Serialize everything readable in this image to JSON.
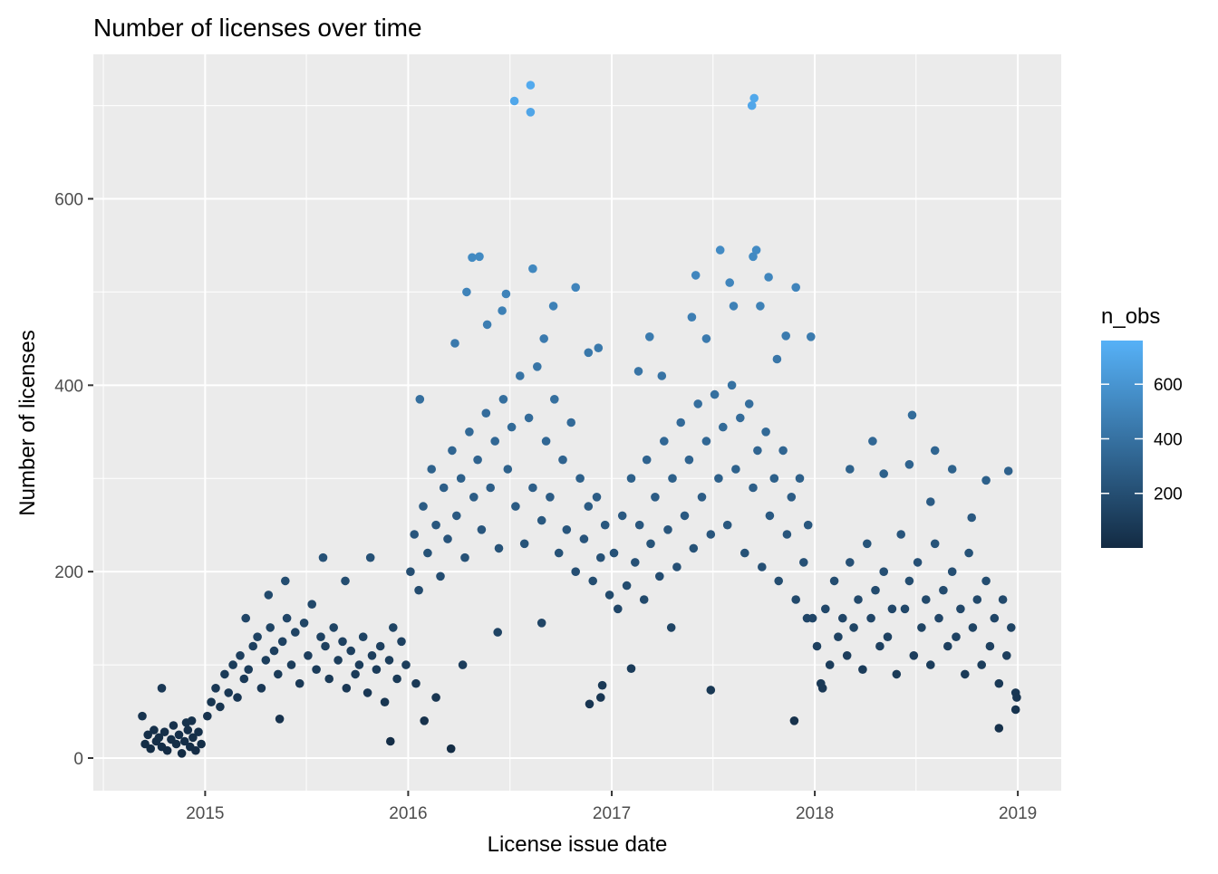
{
  "chart_data": {
    "type": "scatter",
    "title": "Number of licenses over time",
    "xlabel": "License issue date",
    "ylabel": "Number of licenses",
    "x_tick_labels": [
      "2015",
      "2016",
      "2017",
      "2018",
      "2019"
    ],
    "y_tick_labels": [
      "0",
      "200",
      "400",
      "600"
    ],
    "xlim": [
      "2014-06-14",
      "2019-03-20"
    ],
    "ylim": [
      -35,
      755
    ],
    "grid": true,
    "legend": {
      "title": "n_obs",
      "position": "right",
      "type": "colorbar",
      "range": [
        0,
        760
      ],
      "tick_labels": [
        "200",
        "400",
        "600"
      ],
      "color_low": "#132b43",
      "color_high": "#56b1f7"
    },
    "colors": {
      "panel": "#ebebeb",
      "grid": "#ffffff"
    },
    "points": [
      {
        "x": "2014-09-15",
        "y": 15
      },
      {
        "x": "2014-09-20",
        "y": 25
      },
      {
        "x": "2014-09-25",
        "y": 10
      },
      {
        "x": "2014-10-01",
        "y": 30
      },
      {
        "x": "2014-10-05",
        "y": 18
      },
      {
        "x": "2014-10-10",
        "y": 22
      },
      {
        "x": "2014-10-15",
        "y": 12
      },
      {
        "x": "2014-10-20",
        "y": 28
      },
      {
        "x": "2014-10-25",
        "y": 8
      },
      {
        "x": "2014-11-01",
        "y": 20
      },
      {
        "x": "2014-11-05",
        "y": 35
      },
      {
        "x": "2014-11-10",
        "y": 15
      },
      {
        "x": "2014-11-15",
        "y": 25
      },
      {
        "x": "2014-11-20",
        "y": 5
      },
      {
        "x": "2014-11-25",
        "y": 18
      },
      {
        "x": "2014-12-01",
        "y": 30
      },
      {
        "x": "2014-12-05",
        "y": 12
      },
      {
        "x": "2014-12-10",
        "y": 22
      },
      {
        "x": "2014-12-15",
        "y": 8
      },
      {
        "x": "2014-12-20",
        "y": 28
      },
      {
        "x": "2014-12-25",
        "y": 15
      },
      {
        "x": "2014-09-10",
        "y": 45
      },
      {
        "x": "2014-10-15",
        "y": 75
      },
      {
        "x": "2014-11-28",
        "y": 38
      },
      {
        "x": "2014-12-08",
        "y": 40
      },
      {
        "x": "2015-01-05",
        "y": 45
      },
      {
        "x": "2015-01-12",
        "y": 60
      },
      {
        "x": "2015-01-20",
        "y": 75
      },
      {
        "x": "2015-01-28",
        "y": 55
      },
      {
        "x": "2015-02-05",
        "y": 90
      },
      {
        "x": "2015-02-12",
        "y": 70
      },
      {
        "x": "2015-02-20",
        "y": 100
      },
      {
        "x": "2015-02-28",
        "y": 65
      },
      {
        "x": "2015-03-05",
        "y": 110
      },
      {
        "x": "2015-03-12",
        "y": 85
      },
      {
        "x": "2015-03-20",
        "y": 95
      },
      {
        "x": "2015-03-28",
        "y": 120
      },
      {
        "x": "2015-04-05",
        "y": 130
      },
      {
        "x": "2015-04-12",
        "y": 75
      },
      {
        "x": "2015-04-20",
        "y": 105
      },
      {
        "x": "2015-04-28",
        "y": 140
      },
      {
        "x": "2015-05-05",
        "y": 115
      },
      {
        "x": "2015-05-12",
        "y": 90
      },
      {
        "x": "2015-05-20",
        "y": 125
      },
      {
        "x": "2015-05-28",
        "y": 150
      },
      {
        "x": "2015-06-05",
        "y": 100
      },
      {
        "x": "2015-06-12",
        "y": 135
      },
      {
        "x": "2015-06-20",
        "y": 80
      },
      {
        "x": "2015-06-28",
        "y": 145
      },
      {
        "x": "2015-07-05",
        "y": 110
      },
      {
        "x": "2015-07-12",
        "y": 165
      },
      {
        "x": "2015-07-20",
        "y": 95
      },
      {
        "x": "2015-07-28",
        "y": 130
      },
      {
        "x": "2015-08-05",
        "y": 120
      },
      {
        "x": "2015-08-12",
        "y": 85
      },
      {
        "x": "2015-08-20",
        "y": 140
      },
      {
        "x": "2015-08-28",
        "y": 105
      },
      {
        "x": "2015-09-05",
        "y": 125
      },
      {
        "x": "2015-09-12",
        "y": 75
      },
      {
        "x": "2015-09-20",
        "y": 115
      },
      {
        "x": "2015-09-28",
        "y": 90
      },
      {
        "x": "2015-10-05",
        "y": 100
      },
      {
        "x": "2015-10-12",
        "y": 130
      },
      {
        "x": "2015-10-20",
        "y": 70
      },
      {
        "x": "2015-10-28",
        "y": 110
      },
      {
        "x": "2015-11-05",
        "y": 95
      },
      {
        "x": "2015-11-12",
        "y": 120
      },
      {
        "x": "2015-11-20",
        "y": 60
      },
      {
        "x": "2015-11-28",
        "y": 105
      },
      {
        "x": "2015-12-05",
        "y": 140
      },
      {
        "x": "2015-12-12",
        "y": 85
      },
      {
        "x": "2015-12-20",
        "y": 125
      },
      {
        "x": "2015-12-28",
        "y": 100
      },
      {
        "x": "2015-03-15",
        "y": 150
      },
      {
        "x": "2015-04-25",
        "y": 175
      },
      {
        "x": "2015-05-25",
        "y": 190
      },
      {
        "x": "2015-08-01",
        "y": 215
      },
      {
        "x": "2015-09-10",
        "y": 190
      },
      {
        "x": "2015-10-25",
        "y": 215
      },
      {
        "x": "2015-11-30",
        "y": 18
      },
      {
        "x": "2015-05-15",
        "y": 42
      },
      {
        "x": "2016-01-05",
        "y": 200
      },
      {
        "x": "2016-01-12",
        "y": 240
      },
      {
        "x": "2016-01-20",
        "y": 180
      },
      {
        "x": "2016-01-28",
        "y": 270
      },
      {
        "x": "2016-02-05",
        "y": 220
      },
      {
        "x": "2016-02-12",
        "y": 310
      },
      {
        "x": "2016-02-20",
        "y": 250
      },
      {
        "x": "2016-02-28",
        "y": 195
      },
      {
        "x": "2016-03-05",
        "y": 290
      },
      {
        "x": "2016-03-12",
        "y": 235
      },
      {
        "x": "2016-03-20",
        "y": 330
      },
      {
        "x": "2016-03-28",
        "y": 260
      },
      {
        "x": "2016-04-05",
        "y": 300
      },
      {
        "x": "2016-04-12",
        "y": 215
      },
      {
        "x": "2016-04-20",
        "y": 350
      },
      {
        "x": "2016-04-28",
        "y": 280
      },
      {
        "x": "2016-05-05",
        "y": 320
      },
      {
        "x": "2016-05-12",
        "y": 245
      },
      {
        "x": "2016-05-20",
        "y": 370
      },
      {
        "x": "2016-05-28",
        "y": 290
      },
      {
        "x": "2016-06-05",
        "y": 340
      },
      {
        "x": "2016-06-12",
        "y": 225
      },
      {
        "x": "2016-06-20",
        "y": 385
      },
      {
        "x": "2016-06-28",
        "y": 310
      },
      {
        "x": "2016-07-05",
        "y": 355
      },
      {
        "x": "2016-07-12",
        "y": 270
      },
      {
        "x": "2016-07-20",
        "y": 410
      },
      {
        "x": "2016-07-28",
        "y": 230
      },
      {
        "x": "2016-08-05",
        "y": 365
      },
      {
        "x": "2016-08-12",
        "y": 290
      },
      {
        "x": "2016-08-20",
        "y": 420
      },
      {
        "x": "2016-08-28",
        "y": 255
      },
      {
        "x": "2016-09-05",
        "y": 340
      },
      {
        "x": "2016-09-12",
        "y": 280
      },
      {
        "x": "2016-09-20",
        "y": 385
      },
      {
        "x": "2016-09-28",
        "y": 220
      },
      {
        "x": "2016-10-05",
        "y": 320
      },
      {
        "x": "2016-10-12",
        "y": 245
      },
      {
        "x": "2016-10-20",
        "y": 360
      },
      {
        "x": "2016-10-28",
        "y": 200
      },
      {
        "x": "2016-11-05",
        "y": 300
      },
      {
        "x": "2016-11-12",
        "y": 235
      },
      {
        "x": "2016-11-20",
        "y": 270
      },
      {
        "x": "2016-11-28",
        "y": 190
      },
      {
        "x": "2016-12-05",
        "y": 280
      },
      {
        "x": "2016-12-12",
        "y": 215
      },
      {
        "x": "2016-12-20",
        "y": 250
      },
      {
        "x": "2016-12-28",
        "y": 175
      },
      {
        "x": "2016-03-25",
        "y": 445
      },
      {
        "x": "2016-04-15",
        "y": 500
      },
      {
        "x": "2016-04-25",
        "y": 537
      },
      {
        "x": "2016-05-08",
        "y": 538
      },
      {
        "x": "2016-05-22",
        "y": 465
      },
      {
        "x": "2016-06-18",
        "y": 480
      },
      {
        "x": "2016-06-25",
        "y": 498
      },
      {
        "x": "2016-07-10",
        "y": 705
      },
      {
        "x": "2016-08-08",
        "y": 722
      },
      {
        "x": "2016-08-08",
        "y": 693
      },
      {
        "x": "2016-08-12",
        "y": 525
      },
      {
        "x": "2016-09-01",
        "y": 450
      },
      {
        "x": "2016-09-18",
        "y": 485
      },
      {
        "x": "2016-10-28",
        "y": 505
      },
      {
        "x": "2016-11-20",
        "y": 435
      },
      {
        "x": "2016-12-08",
        "y": 440
      },
      {
        "x": "2016-03-18",
        "y": 10
      },
      {
        "x": "2016-04-08",
        "y": 100
      },
      {
        "x": "2016-11-22",
        "y": 58
      },
      {
        "x": "2016-12-12",
        "y": 65
      },
      {
        "x": "2016-12-15",
        "y": 78
      },
      {
        "x": "2016-02-20",
        "y": 65
      },
      {
        "x": "2016-01-30",
        "y": 40
      },
      {
        "x": "2016-01-15",
        "y": 80
      },
      {
        "x": "2016-01-22",
        "y": 385
      },
      {
        "x": "2016-06-10",
        "y": 135
      },
      {
        "x": "2016-08-28",
        "y": 145
      },
      {
        "x": "2017-01-05",
        "y": 220
      },
      {
        "x": "2017-01-12",
        "y": 160
      },
      {
        "x": "2017-01-20",
        "y": 260
      },
      {
        "x": "2017-01-28",
        "y": 185
      },
      {
        "x": "2017-02-05",
        "y": 300
      },
      {
        "x": "2017-02-12",
        "y": 210
      },
      {
        "x": "2017-02-20",
        "y": 250
      },
      {
        "x": "2017-02-28",
        "y": 170
      },
      {
        "x": "2017-03-05",
        "y": 320
      },
      {
        "x": "2017-03-12",
        "y": 230
      },
      {
        "x": "2017-03-20",
        "y": 280
      },
      {
        "x": "2017-03-28",
        "y": 195
      },
      {
        "x": "2017-04-05",
        "y": 340
      },
      {
        "x": "2017-04-12",
        "y": 245
      },
      {
        "x": "2017-04-20",
        "y": 300
      },
      {
        "x": "2017-04-28",
        "y": 205
      },
      {
        "x": "2017-05-05",
        "y": 360
      },
      {
        "x": "2017-05-12",
        "y": 260
      },
      {
        "x": "2017-05-20",
        "y": 320
      },
      {
        "x": "2017-05-28",
        "y": 225
      },
      {
        "x": "2017-06-05",
        "y": 380
      },
      {
        "x": "2017-06-12",
        "y": 280
      },
      {
        "x": "2017-06-20",
        "y": 340
      },
      {
        "x": "2017-06-28",
        "y": 240
      },
      {
        "x": "2017-07-05",
        "y": 390
      },
      {
        "x": "2017-07-12",
        "y": 300
      },
      {
        "x": "2017-07-20",
        "y": 355
      },
      {
        "x": "2017-07-28",
        "y": 250
      },
      {
        "x": "2017-08-05",
        "y": 400
      },
      {
        "x": "2017-08-12",
        "y": 310
      },
      {
        "x": "2017-08-20",
        "y": 365
      },
      {
        "x": "2017-08-28",
        "y": 220
      },
      {
        "x": "2017-09-05",
        "y": 380
      },
      {
        "x": "2017-09-12",
        "y": 290
      },
      {
        "x": "2017-09-20",
        "y": 330
      },
      {
        "x": "2017-09-28",
        "y": 205
      },
      {
        "x": "2017-10-05",
        "y": 350
      },
      {
        "x": "2017-10-12",
        "y": 260
      },
      {
        "x": "2017-10-20",
        "y": 300
      },
      {
        "x": "2017-10-28",
        "y": 190
      },
      {
        "x": "2017-11-05",
        "y": 330
      },
      {
        "x": "2017-11-12",
        "y": 240
      },
      {
        "x": "2017-11-20",
        "y": 280
      },
      {
        "x": "2017-11-28",
        "y": 170
      },
      {
        "x": "2017-12-05",
        "y": 300
      },
      {
        "x": "2017-12-12",
        "y": 210
      },
      {
        "x": "2017-12-20",
        "y": 250
      },
      {
        "x": "2017-12-28",
        "y": 150
      },
      {
        "x": "2017-02-18",
        "y": 415
      },
      {
        "x": "2017-03-10",
        "y": 452
      },
      {
        "x": "2017-04-01",
        "y": 410
      },
      {
        "x": "2017-05-25",
        "y": 473
      },
      {
        "x": "2017-06-01",
        "y": 518
      },
      {
        "x": "2017-06-20",
        "y": 450
      },
      {
        "x": "2017-07-15",
        "y": 545
      },
      {
        "x": "2017-08-01",
        "y": 510
      },
      {
        "x": "2017-08-08",
        "y": 485
      },
      {
        "x": "2017-09-10",
        "y": 700
      },
      {
        "x": "2017-09-14",
        "y": 708
      },
      {
        "x": "2017-09-18",
        "y": 545
      },
      {
        "x": "2017-09-12",
        "y": 538
      },
      {
        "x": "2017-09-25",
        "y": 485
      },
      {
        "x": "2017-10-10",
        "y": 516
      },
      {
        "x": "2017-10-25",
        "y": 428
      },
      {
        "x": "2017-11-10",
        "y": 453
      },
      {
        "x": "2017-11-28",
        "y": 505
      },
      {
        "x": "2017-12-25",
        "y": 452
      },
      {
        "x": "2017-02-05",
        "y": 96
      },
      {
        "x": "2017-06-28",
        "y": 73
      },
      {
        "x": "2017-11-25",
        "y": 40
      },
      {
        "x": "2017-04-18",
        "y": 140
      },
      {
        "x": "2017-12-18",
        "y": 150
      },
      {
        "x": "2018-01-05",
        "y": 120
      },
      {
        "x": "2018-01-12",
        "y": 80
      },
      {
        "x": "2018-01-20",
        "y": 160
      },
      {
        "x": "2018-01-28",
        "y": 100
      },
      {
        "x": "2018-02-05",
        "y": 190
      },
      {
        "x": "2018-02-12",
        "y": 130
      },
      {
        "x": "2018-02-20",
        "y": 150
      },
      {
        "x": "2018-02-28",
        "y": 110
      },
      {
        "x": "2018-03-05",
        "y": 210
      },
      {
        "x": "2018-03-12",
        "y": 140
      },
      {
        "x": "2018-03-20",
        "y": 170
      },
      {
        "x": "2018-03-28",
        "y": 95
      },
      {
        "x": "2018-04-05",
        "y": 230
      },
      {
        "x": "2018-04-12",
        "y": 150
      },
      {
        "x": "2018-04-20",
        "y": 180
      },
      {
        "x": "2018-04-28",
        "y": 120
      },
      {
        "x": "2018-05-05",
        "y": 200
      },
      {
        "x": "2018-05-12",
        "y": 130
      },
      {
        "x": "2018-05-20",
        "y": 160
      },
      {
        "x": "2018-05-28",
        "y": 90
      },
      {
        "x": "2018-06-05",
        "y": 240
      },
      {
        "x": "2018-06-12",
        "y": 160
      },
      {
        "x": "2018-06-20",
        "y": 190
      },
      {
        "x": "2018-06-28",
        "y": 110
      },
      {
        "x": "2018-07-05",
        "y": 210
      },
      {
        "x": "2018-07-12",
        "y": 140
      },
      {
        "x": "2018-07-20",
        "y": 170
      },
      {
        "x": "2018-07-28",
        "y": 100
      },
      {
        "x": "2018-08-05",
        "y": 230
      },
      {
        "x": "2018-08-12",
        "y": 150
      },
      {
        "x": "2018-08-20",
        "y": 180
      },
      {
        "x": "2018-08-28",
        "y": 120
      },
      {
        "x": "2018-09-05",
        "y": 200
      },
      {
        "x": "2018-09-12",
        "y": 130
      },
      {
        "x": "2018-09-20",
        "y": 160
      },
      {
        "x": "2018-09-28",
        "y": 90
      },
      {
        "x": "2018-10-05",
        "y": 220
      },
      {
        "x": "2018-10-12",
        "y": 140
      },
      {
        "x": "2018-10-20",
        "y": 170
      },
      {
        "x": "2018-10-28",
        "y": 100
      },
      {
        "x": "2018-11-05",
        "y": 190
      },
      {
        "x": "2018-11-12",
        "y": 120
      },
      {
        "x": "2018-11-20",
        "y": 150
      },
      {
        "x": "2018-11-28",
        "y": 80
      },
      {
        "x": "2018-12-05",
        "y": 170
      },
      {
        "x": "2018-12-12",
        "y": 110
      },
      {
        "x": "2018-12-20",
        "y": 140
      },
      {
        "x": "2018-12-28",
        "y": 70
      },
      {
        "x": "2018-04-15",
        "y": 340
      },
      {
        "x": "2018-05-05",
        "y": 305
      },
      {
        "x": "2018-03-05",
        "y": 310
      },
      {
        "x": "2018-06-25",
        "y": 368
      },
      {
        "x": "2018-08-05",
        "y": 330
      },
      {
        "x": "2018-09-05",
        "y": 310
      },
      {
        "x": "2018-10-10",
        "y": 258
      },
      {
        "x": "2018-11-05",
        "y": 298
      },
      {
        "x": "2018-12-15",
        "y": 308
      },
      {
        "x": "2018-11-28",
        "y": 32
      },
      {
        "x": "2018-12-28",
        "y": 52
      },
      {
        "x": "2018-12-30",
        "y": 65
      },
      {
        "x": "2018-01-15",
        "y": 75
      },
      {
        "x": "2018-06-20",
        "y": 315
      },
      {
        "x": "2018-07-28",
        "y": 275
      }
    ]
  }
}
